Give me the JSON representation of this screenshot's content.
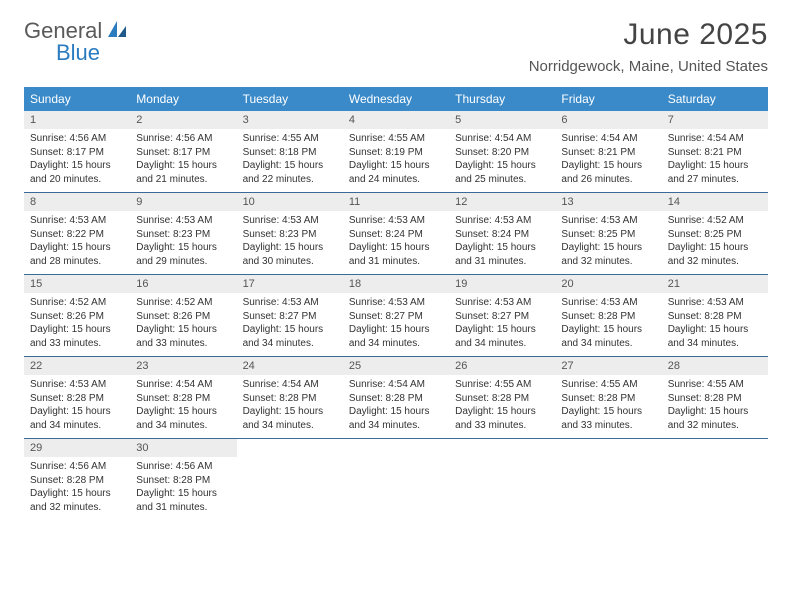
{
  "brand": {
    "part1": "General",
    "part2": "Blue"
  },
  "title": "June 2025",
  "location": "Norridgewock, Maine, United States",
  "colors": {
    "header_bg": "#3a8ac9",
    "accent_blue": "#2b7bbf",
    "border": "#3a6a9a",
    "daynum_bg": "#ededed",
    "text_dark": "#333333",
    "text_muted": "#555555",
    "page_bg": "#ffffff"
  },
  "dayNames": [
    "Sunday",
    "Monday",
    "Tuesday",
    "Wednesday",
    "Thursday",
    "Friday",
    "Saturday"
  ],
  "days": [
    {
      "n": 1,
      "sunrise": "4:56 AM",
      "sunset": "8:17 PM",
      "daylight": "15 hours and 20 minutes."
    },
    {
      "n": 2,
      "sunrise": "4:56 AM",
      "sunset": "8:17 PM",
      "daylight": "15 hours and 21 minutes."
    },
    {
      "n": 3,
      "sunrise": "4:55 AM",
      "sunset": "8:18 PM",
      "daylight": "15 hours and 22 minutes."
    },
    {
      "n": 4,
      "sunrise": "4:55 AM",
      "sunset": "8:19 PM",
      "daylight": "15 hours and 24 minutes."
    },
    {
      "n": 5,
      "sunrise": "4:54 AM",
      "sunset": "8:20 PM",
      "daylight": "15 hours and 25 minutes."
    },
    {
      "n": 6,
      "sunrise": "4:54 AM",
      "sunset": "8:21 PM",
      "daylight": "15 hours and 26 minutes."
    },
    {
      "n": 7,
      "sunrise": "4:54 AM",
      "sunset": "8:21 PM",
      "daylight": "15 hours and 27 minutes."
    },
    {
      "n": 8,
      "sunrise": "4:53 AM",
      "sunset": "8:22 PM",
      "daylight": "15 hours and 28 minutes."
    },
    {
      "n": 9,
      "sunrise": "4:53 AM",
      "sunset": "8:23 PM",
      "daylight": "15 hours and 29 minutes."
    },
    {
      "n": 10,
      "sunrise": "4:53 AM",
      "sunset": "8:23 PM",
      "daylight": "15 hours and 30 minutes."
    },
    {
      "n": 11,
      "sunrise": "4:53 AM",
      "sunset": "8:24 PM",
      "daylight": "15 hours and 31 minutes."
    },
    {
      "n": 12,
      "sunrise": "4:53 AM",
      "sunset": "8:24 PM",
      "daylight": "15 hours and 31 minutes."
    },
    {
      "n": 13,
      "sunrise": "4:53 AM",
      "sunset": "8:25 PM",
      "daylight": "15 hours and 32 minutes."
    },
    {
      "n": 14,
      "sunrise": "4:52 AM",
      "sunset": "8:25 PM",
      "daylight": "15 hours and 32 minutes."
    },
    {
      "n": 15,
      "sunrise": "4:52 AM",
      "sunset": "8:26 PM",
      "daylight": "15 hours and 33 minutes."
    },
    {
      "n": 16,
      "sunrise": "4:52 AM",
      "sunset": "8:26 PM",
      "daylight": "15 hours and 33 minutes."
    },
    {
      "n": 17,
      "sunrise": "4:53 AM",
      "sunset": "8:27 PM",
      "daylight": "15 hours and 34 minutes."
    },
    {
      "n": 18,
      "sunrise": "4:53 AM",
      "sunset": "8:27 PM",
      "daylight": "15 hours and 34 minutes."
    },
    {
      "n": 19,
      "sunrise": "4:53 AM",
      "sunset": "8:27 PM",
      "daylight": "15 hours and 34 minutes."
    },
    {
      "n": 20,
      "sunrise": "4:53 AM",
      "sunset": "8:28 PM",
      "daylight": "15 hours and 34 minutes."
    },
    {
      "n": 21,
      "sunrise": "4:53 AM",
      "sunset": "8:28 PM",
      "daylight": "15 hours and 34 minutes."
    },
    {
      "n": 22,
      "sunrise": "4:53 AM",
      "sunset": "8:28 PM",
      "daylight": "15 hours and 34 minutes."
    },
    {
      "n": 23,
      "sunrise": "4:54 AM",
      "sunset": "8:28 PM",
      "daylight": "15 hours and 34 minutes."
    },
    {
      "n": 24,
      "sunrise": "4:54 AM",
      "sunset": "8:28 PM",
      "daylight": "15 hours and 34 minutes."
    },
    {
      "n": 25,
      "sunrise": "4:54 AM",
      "sunset": "8:28 PM",
      "daylight": "15 hours and 34 minutes."
    },
    {
      "n": 26,
      "sunrise": "4:55 AM",
      "sunset": "8:28 PM",
      "daylight": "15 hours and 33 minutes."
    },
    {
      "n": 27,
      "sunrise": "4:55 AM",
      "sunset": "8:28 PM",
      "daylight": "15 hours and 33 minutes."
    },
    {
      "n": 28,
      "sunrise": "4:55 AM",
      "sunset": "8:28 PM",
      "daylight": "15 hours and 32 minutes."
    },
    {
      "n": 29,
      "sunrise": "4:56 AM",
      "sunset": "8:28 PM",
      "daylight": "15 hours and 32 minutes."
    },
    {
      "n": 30,
      "sunrise": "4:56 AM",
      "sunset": "8:28 PM",
      "daylight": "15 hours and 31 minutes."
    }
  ],
  "labels": {
    "sunrise": "Sunrise:",
    "sunset": "Sunset:",
    "daylight": "Daylight:"
  }
}
